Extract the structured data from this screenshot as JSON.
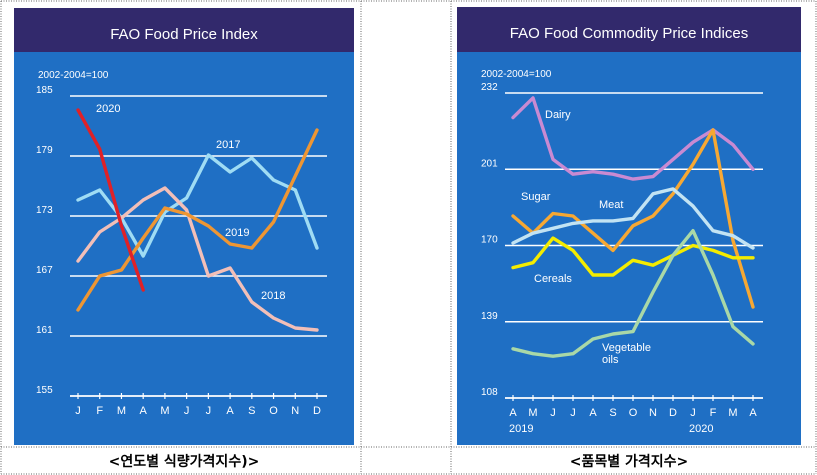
{
  "charts": [
    {
      "type": "line",
      "title": "FAO Food Price Index",
      "subtitle": "2002-2004=100",
      "y_ticks": [
        155,
        161,
        167,
        173,
        179,
        185
      ],
      "ylim": [
        155,
        185
      ],
      "categories": [
        "J",
        "F",
        "M",
        "A",
        "M",
        "J",
        "J",
        "A",
        "S",
        "O",
        "N",
        "D"
      ],
      "caption": "<연도별 식량가격지수)>",
      "colors": {
        "background": "#1f6fc4",
        "title_bar": "#32296c",
        "grid": "#ffffff"
      },
      "series": [
        {
          "name": "2017",
          "color": "#9fdcf4",
          "values": [
            174.6,
            175.6,
            172.8,
            169.0,
            173.4,
            174.8,
            179.1,
            177.4,
            178.8,
            176.6,
            175.6,
            169.8
          ]
        },
        {
          "name": "2018",
          "color": "#f2bfb8",
          "values": [
            168.5,
            171.4,
            172.8,
            174.6,
            175.8,
            173.6,
            167.0,
            167.8,
            164.4,
            162.8,
            161.8,
            161.6
          ]
        },
        {
          "name": "2019",
          "color": "#ee9633",
          "values": [
            163.6,
            167.0,
            167.6,
            170.8,
            173.8,
            173.2,
            172.0,
            170.2,
            169.8,
            172.4,
            177.0,
            181.6
          ]
        },
        {
          "name": "2020",
          "color": "#e02127",
          "values": [
            183.6,
            179.7,
            172.0,
            165.6
          ]
        }
      ]
    },
    {
      "type": "line",
      "title": "FAO Food Commodity Price Indices",
      "subtitle": "2002-2004=100",
      "y_ticks": [
        108,
        139,
        170,
        201,
        232
      ],
      "ylim": [
        108,
        232
      ],
      "categories": [
        "A",
        "M",
        "J",
        "J",
        "A",
        "S",
        "O",
        "N",
        "D",
        "J",
        "F",
        "M",
        "A"
      ],
      "year_labels": [
        "2019",
        "2020"
      ],
      "caption": "<품목별 가격지수>",
      "colors": {
        "background": "#1f6fc4",
        "title_bar": "#32296c",
        "grid": "#ffffff"
      },
      "series": [
        {
          "name": "Dairy",
          "color": "#c98ad2",
          "values": [
            222,
            230,
            205,
            199,
            200,
            199,
            197,
            198,
            205,
            212,
            217,
            211,
            201
          ]
        },
        {
          "name": "Sugar",
          "color": "#f7a833",
          "values": [
            182,
            175,
            183,
            182,
            175,
            168,
            178,
            182,
            191,
            203,
            217,
            172,
            145
          ]
        },
        {
          "name": "Meat",
          "color": "#c2e3f3",
          "values": [
            171,
            175,
            177,
            179,
            180,
            180,
            181,
            191,
            193,
            186,
            176,
            174,
            169
          ]
        },
        {
          "name": "Cereals",
          "color": "#f4ec00",
          "values": [
            161,
            163,
            173,
            168,
            158,
            158,
            164,
            162,
            166,
            170,
            168,
            165,
            165
          ]
        },
        {
          "name": "Vegetable oils",
          "color": "#a9d8a7",
          "values": [
            128,
            126,
            125,
            126,
            132,
            134,
            135,
            151,
            166,
            176,
            158,
            137,
            130
          ]
        }
      ]
    }
  ]
}
